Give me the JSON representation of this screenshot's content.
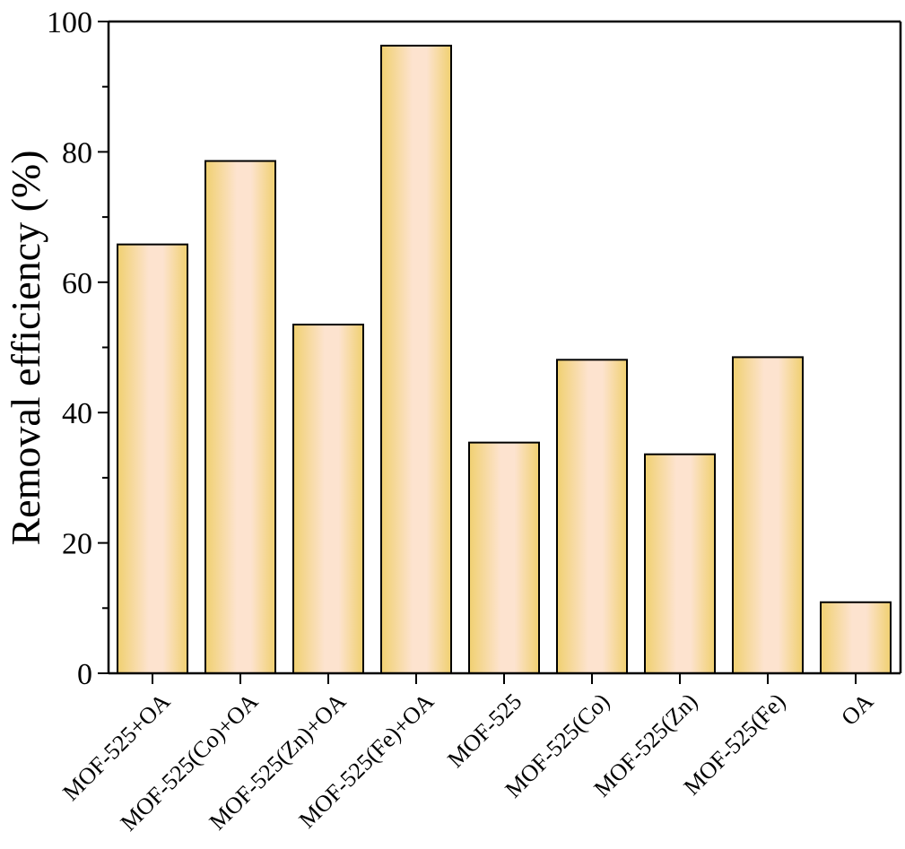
{
  "chart_data": {
    "type": "bar",
    "title": "",
    "xlabel": "",
    "ylabel": "Removal efficiency (%)",
    "categories": [
      "MOF-525+OA",
      "MOF-525(Co)+OA",
      "MOF-525(Zn)+OA",
      "MOF-525(Fe)+OA",
      "MOF-525",
      "MOF-525(Co)",
      "MOF-525(Zn)",
      "MOF-525(Fe)",
      "OA"
    ],
    "values": [
      65.8,
      78.6,
      53.5,
      96.3,
      35.4,
      48.1,
      33.6,
      48.5,
      10.9
    ],
    "ylim": [
      0,
      100
    ],
    "yticks": [
      0,
      20,
      40,
      60,
      80,
      100
    ],
    "yminor_step": 10,
    "grid": false,
    "legend": "none",
    "colors": {
      "bar_edge": "#f0d070",
      "bar_center": "#fde3cf",
      "bar_outline": "#000000",
      "axis": "#000000"
    }
  }
}
